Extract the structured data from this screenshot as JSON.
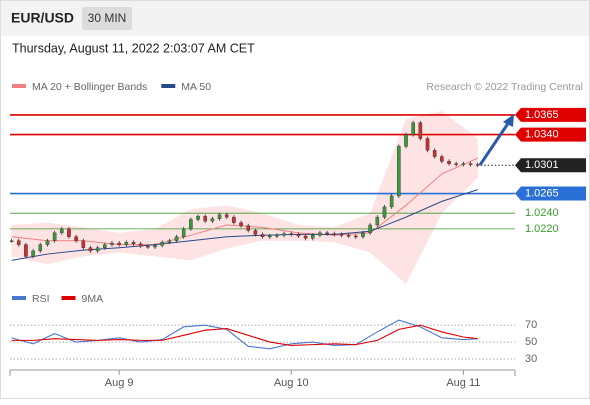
{
  "header": {
    "symbol": "EUR/USD",
    "interval": "30 MIN",
    "timestamp": "Thursday, August 11, 2022 2:03:07 AM CET"
  },
  "chart_data": [
    {
      "type": "candlestick",
      "source": "Research © 2022 Trading Central",
      "xlim": [
        -0.5,
        70.2
      ],
      "ylim": [
        1.0155,
        1.0384
      ],
      "xticks": [
        {
          "value": 15,
          "label": "Aug 9"
        },
        {
          "value": 39,
          "label": "Aug 10"
        },
        {
          "value": 63,
          "label": "Aug 11"
        }
      ],
      "candles": {
        "up_color": "#3a9a3a",
        "down_color": "#c8302c",
        "values": [
          1.0205,
          1.02,
          1.0185,
          1.0192,
          1.02,
          1.0205,
          1.0215,
          1.022,
          1.021,
          1.0205,
          1.0196,
          1.0192,
          1.0196,
          1.02,
          1.0202,
          1.02,
          1.0203,
          1.0201,
          1.0198,
          1.0197,
          1.0199,
          1.0203,
          1.0205,
          1.021,
          1.022,
          1.0232,
          1.0236,
          1.023,
          1.0233,
          1.0238,
          1.0235,
          1.0228,
          1.0224,
          1.0218,
          1.0213,
          1.021,
          1.0211,
          1.0212,
          1.0214,
          1.0213,
          1.0211,
          1.0208,
          1.0212,
          1.0215,
          1.0214,
          1.0213,
          1.0212,
          1.0211,
          1.021,
          1.0215,
          1.0225,
          1.0235,
          1.0248,
          1.0262,
          1.0325,
          1.034,
          1.0355,
          1.0335,
          1.032,
          1.0312,
          1.0306,
          1.0303,
          1.0302,
          1.0303,
          1.0302,
          1.0301
        ]
      },
      "series": [
        {
          "name": "MA 20 + Bollinger Bands",
          "color": "#f08080",
          "band_color": "#fde3e3",
          "x": [
            0,
            5,
            10,
            15,
            20,
            25,
            30,
            35,
            40,
            45,
            50,
            55,
            60,
            65
          ],
          "values": [
            1.021,
            1.0205,
            1.0205,
            1.02,
            1.02,
            1.0212,
            1.0225,
            1.0222,
            1.0215,
            1.0212,
            1.0215,
            1.025,
            1.029,
            1.031
          ],
          "upper": [
            1.0225,
            1.0228,
            1.0222,
            1.0215,
            1.022,
            1.0245,
            1.025,
            1.024,
            1.0225,
            1.0222,
            1.024,
            1.036,
            1.037,
            1.0335
          ],
          "lower": [
            1.0185,
            1.0175,
            1.0185,
            1.019,
            1.0185,
            1.018,
            1.0195,
            1.0205,
            1.0205,
            1.0203,
            1.019,
            1.015,
            1.024,
            1.0285
          ]
        },
        {
          "name": "MA 50",
          "color": "#2a4a8a",
          "x": [
            0,
            5,
            10,
            15,
            20,
            25,
            30,
            35,
            40,
            45,
            50,
            55,
            60,
            65
          ],
          "values": [
            1.018,
            1.0188,
            1.0193,
            1.0196,
            1.02,
            1.0205,
            1.021,
            1.0212,
            1.0213,
            1.0213,
            1.0217,
            1.0235,
            1.0255,
            1.027
          ]
        }
      ],
      "levels": [
        {
          "value": 1.0365,
          "color": "#e00000",
          "box": true
        },
        {
          "value": 1.034,
          "label": "1.0340",
          "color": "#e00000",
          "box": true
        },
        {
          "value": 1.0301,
          "color": "#222222",
          "box": true,
          "dotted": true
        },
        {
          "value": 1.0265,
          "color": "#2a6fd6",
          "box": true
        },
        {
          "value": 1.024,
          "label": "1.0240",
          "color": "#3a9a2a",
          "box": false
        },
        {
          "value": 1.022,
          "label": "1.0220",
          "color": "#3a9a2a",
          "box": false
        }
      ]
    },
    {
      "type": "line",
      "xlim": [
        -0.5,
        70.2
      ],
      "ylim": [
        17,
        82
      ],
      "yticks": [
        30,
        50,
        70
      ],
      "series": [
        {
          "name": "RSI",
          "color": "#4a78d0",
          "x": [
            0,
            3,
            6,
            9,
            12,
            15,
            18,
            21,
            24,
            27,
            30,
            33,
            36,
            39,
            42,
            45,
            48,
            51,
            54,
            57,
            60,
            63,
            65
          ],
          "values": [
            55,
            48,
            60,
            50,
            52,
            55,
            50,
            53,
            68,
            70,
            65,
            45,
            42,
            48,
            50,
            46,
            47,
            62,
            76,
            68,
            55,
            53,
            54
          ]
        },
        {
          "name": "9MA",
          "color": "#e00000",
          "x": [
            0,
            3,
            6,
            9,
            12,
            15,
            18,
            21,
            24,
            27,
            30,
            33,
            36,
            39,
            42,
            45,
            48,
            51,
            54,
            57,
            60,
            63,
            65
          ],
          "values": [
            52,
            52,
            54,
            53,
            52,
            53,
            52,
            52,
            58,
            64,
            66,
            58,
            50,
            46,
            47,
            48,
            47,
            52,
            65,
            70,
            62,
            56,
            54
          ]
        }
      ]
    }
  ]
}
